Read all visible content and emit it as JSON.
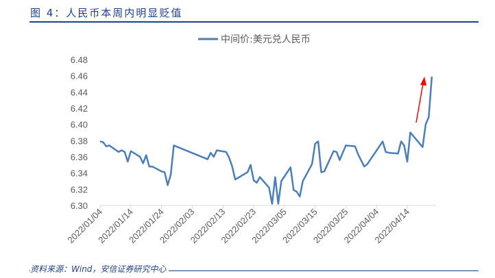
{
  "title": "图 4：人民币本周内明显贬值",
  "source": "资料来源：Wind，安信证券研究中心",
  "chart_data": {
    "type": "line",
    "title": "",
    "legend": [
      "中间价:美元兑人民币"
    ],
    "legend_position": "top",
    "colors": {
      "line": "#4a7ebb",
      "arrow": "#ff0000"
    },
    "ylim": [
      6.3,
      6.48
    ],
    "yticks": [
      "6.30",
      "6.32",
      "6.34",
      "6.36",
      "6.38",
      "6.40",
      "6.42",
      "6.44",
      "6.46",
      "6.48"
    ],
    "xticks": [
      "2022/01/04",
      "2022/01/14",
      "2022/01/24",
      "2022/02/03",
      "2022/02/13",
      "2022/02/23",
      "2022/03/05",
      "2022/03/15",
      "2022/03/25",
      "2022/04/04",
      "2022/04/14"
    ],
    "x_unit": "days since 2022/01/04",
    "xlim": [
      0,
      109
    ],
    "series": [
      {
        "name": "中间价:美元兑人民币",
        "x": [
          0,
          1,
          2,
          3,
          6,
          7,
          8,
          9,
          10,
          13,
          14,
          15,
          16,
          17,
          20,
          21,
          22,
          23,
          24,
          35,
          36,
          37,
          38,
          41,
          42,
          43,
          44,
          48,
          49,
          50,
          51,
          52,
          55,
          56,
          57,
          58,
          59,
          62,
          63,
          64,
          65,
          66,
          69,
          70,
          71,
          72,
          73,
          76,
          77,
          78,
          80,
          83,
          84,
          86,
          87,
          92,
          93,
          94,
          97,
          98,
          99,
          100,
          101,
          105,
          106,
          107,
          108
        ],
        "values": [
          6.379,
          6.378,
          6.373,
          6.374,
          6.366,
          6.368,
          6.366,
          6.354,
          6.367,
          6.36,
          6.352,
          6.362,
          6.348,
          6.348,
          6.342,
          6.341,
          6.325,
          6.338,
          6.374,
          6.357,
          6.365,
          6.36,
          6.368,
          6.366,
          6.359,
          6.348,
          6.332,
          6.341,
          6.35,
          6.331,
          6.328,
          6.335,
          6.322,
          6.302,
          6.335,
          6.302,
          6.33,
          6.347,
          6.319,
          6.317,
          6.311,
          6.33,
          6.351,
          6.376,
          6.379,
          6.341,
          6.342,
          6.367,
          6.366,
          6.356,
          6.374,
          6.373,
          6.363,
          6.348,
          6.351,
          6.379,
          6.366,
          6.365,
          6.364,
          6.379,
          6.374,
          6.354,
          6.39,
          6.372,
          6.4,
          6.409,
          6.459
        ]
      }
    ]
  }
}
